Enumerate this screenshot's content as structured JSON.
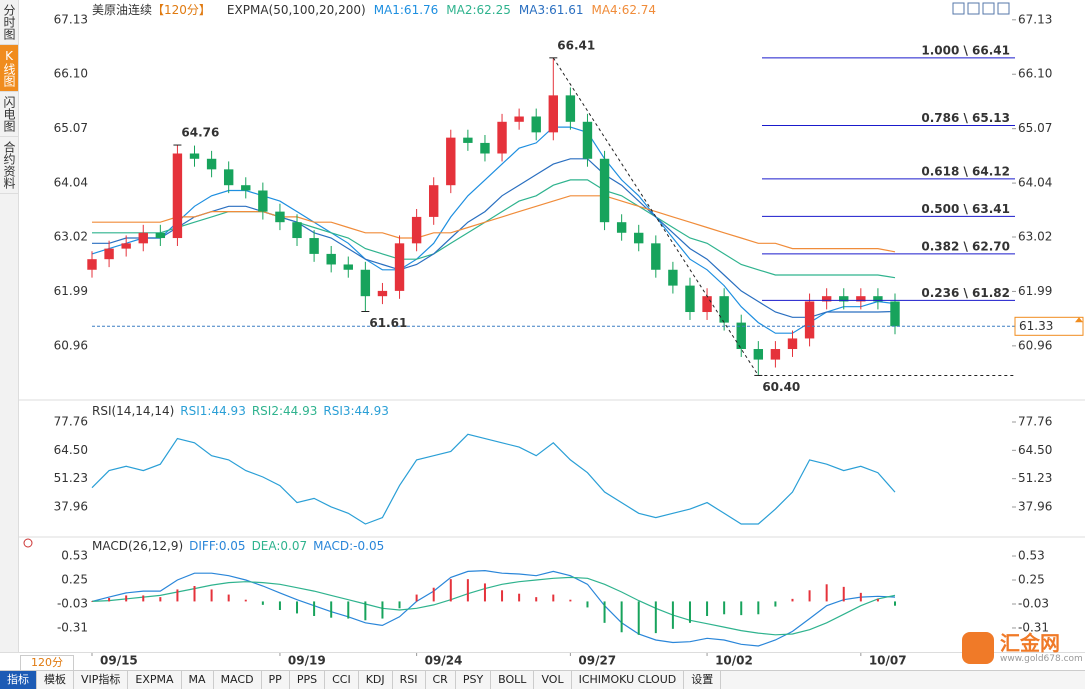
{
  "ui": {
    "tabs": [
      "分时图",
      "K线图",
      "闪电图",
      "合约资料"
    ],
    "active_tab": "K线图",
    "period_button": "120分",
    "toolbar": [
      "指标",
      "模板",
      "VIP指标",
      "EXPMA",
      "MA",
      "MACD",
      "PP",
      "PPS",
      "CCI",
      "KDJ",
      "RSI",
      "CR",
      "PSY",
      "BOLL",
      "VOL",
      "ICHIMOKU CLOUD",
      "设置"
    ],
    "active_tool": "指标",
    "logo": {
      "name": "汇金网",
      "url": "www.gold678.com"
    }
  },
  "chart_data": [
    {
      "type": "candlestick",
      "title": "美原油连续",
      "period": "【120分】",
      "indicator": "EXPMA(50,100,20,200)",
      "categories": [
        "09/15",
        null,
        null,
        null,
        null,
        null,
        null,
        null,
        null,
        null,
        null,
        "09/19",
        null,
        null,
        null,
        null,
        null,
        null,
        null,
        "09/24",
        null,
        null,
        null,
        null,
        null,
        null,
        null,
        null,
        "09/27",
        null,
        null,
        null,
        null,
        null,
        null,
        null,
        "10/02",
        null,
        null,
        null,
        null,
        null,
        null,
        null,
        null,
        "10/07",
        null,
        null
      ],
      "open": [
        62.4,
        62.6,
        62.8,
        62.9,
        63.1,
        63.0,
        64.6,
        64.5,
        64.3,
        64.0,
        63.9,
        63.5,
        63.3,
        63.0,
        62.7,
        62.5,
        62.4,
        61.9,
        62.0,
        62.9,
        63.4,
        64.0,
        64.9,
        64.8,
        64.6,
        65.2,
        65.3,
        65.0,
        65.7,
        65.2,
        64.5,
        63.3,
        63.1,
        62.9,
        62.4,
        62.1,
        61.6,
        61.9,
        61.4,
        60.9,
        60.7,
        60.9,
        61.1,
        61.8,
        61.9,
        61.8,
        61.9,
        61.8
      ],
      "high": [
        62.75,
        62.95,
        63.05,
        63.25,
        63.25,
        64.76,
        64.75,
        64.65,
        64.45,
        64.15,
        64.05,
        63.65,
        63.45,
        63.15,
        62.85,
        62.65,
        62.55,
        62.15,
        63.05,
        63.55,
        64.15,
        65.05,
        65.05,
        64.95,
        65.35,
        65.45,
        65.45,
        66.41,
        65.85,
        65.35,
        64.65,
        63.45,
        63.25,
        63.05,
        62.55,
        62.25,
        62.05,
        62.05,
        61.55,
        61.05,
        61.05,
        61.25,
        61.95,
        62.05,
        62.05,
        62.05,
        62.05,
        61.95
      ],
      "low": [
        62.25,
        62.45,
        62.65,
        62.75,
        62.85,
        62.85,
        64.35,
        64.15,
        63.85,
        63.75,
        63.35,
        63.15,
        62.85,
        62.55,
        62.35,
        62.25,
        61.61,
        61.75,
        61.85,
        62.75,
        63.25,
        63.85,
        64.65,
        64.45,
        64.45,
        65.05,
        64.85,
        64.85,
        65.05,
        64.35,
        63.15,
        62.95,
        62.75,
        62.25,
        61.95,
        61.45,
        61.45,
        61.25,
        60.75,
        60.4,
        60.55,
        60.75,
        60.95,
        61.65,
        61.65,
        61.65,
        61.65,
        61.18
      ],
      "close": [
        62.6,
        62.8,
        62.9,
        63.1,
        63.0,
        64.6,
        64.5,
        64.3,
        64.0,
        63.9,
        63.5,
        63.3,
        63.0,
        62.7,
        62.5,
        62.4,
        61.9,
        62.0,
        62.9,
        63.4,
        64.0,
        64.9,
        64.8,
        64.6,
        65.2,
        65.3,
        65.0,
        65.7,
        65.2,
        64.5,
        63.3,
        63.1,
        62.9,
        62.4,
        62.1,
        61.6,
        61.9,
        61.4,
        60.9,
        60.7,
        60.9,
        61.1,
        61.8,
        61.9,
        61.8,
        61.9,
        61.8,
        61.33
      ],
      "up_color": "#e5323b",
      "down_color": "#17a35c",
      "series": [
        {
          "name": "MA1:61.76",
          "color": "#1e8fe0",
          "values": [
            62.7,
            62.8,
            62.9,
            63.0,
            63.0,
            63.3,
            63.6,
            63.8,
            63.9,
            63.9,
            63.8,
            63.7,
            63.5,
            63.3,
            63.1,
            62.9,
            62.6,
            62.4,
            62.4,
            62.6,
            62.9,
            63.4,
            63.8,
            64.1,
            64.4,
            64.7,
            64.8,
            65.1,
            65.1,
            65.0,
            64.5,
            64.1,
            63.8,
            63.4,
            63.0,
            62.6,
            62.4,
            62.1,
            61.7,
            61.4,
            61.2,
            61.2,
            61.4,
            61.6,
            61.7,
            61.7,
            61.8,
            61.76
          ]
        },
        {
          "name": "MA2:62.25",
          "color": "#2fb38e",
          "values": [
            63.1,
            63.1,
            63.1,
            63.1,
            63.1,
            63.2,
            63.3,
            63.4,
            63.5,
            63.5,
            63.5,
            63.4,
            63.3,
            63.2,
            63.1,
            63.0,
            62.8,
            62.7,
            62.6,
            62.6,
            62.7,
            62.9,
            63.1,
            63.3,
            63.5,
            63.7,
            63.8,
            64.0,
            64.1,
            64.1,
            63.9,
            63.8,
            63.6,
            63.4,
            63.2,
            63.0,
            62.9,
            62.7,
            62.5,
            62.4,
            62.3,
            62.3,
            62.3,
            62.3,
            62.3,
            62.3,
            62.3,
            62.25
          ]
        },
        {
          "name": "MA3:61.61",
          "color": "#2a6fc0",
          "values": [
            62.9,
            62.9,
            63.0,
            63.0,
            63.0,
            63.2,
            63.4,
            63.5,
            63.6,
            63.6,
            63.5,
            63.4,
            63.3,
            63.1,
            63.0,
            62.8,
            62.6,
            62.5,
            62.4,
            62.5,
            62.7,
            63.0,
            63.3,
            63.5,
            63.8,
            64.0,
            64.2,
            64.4,
            64.5,
            64.5,
            64.2,
            64.0,
            63.7,
            63.4,
            63.1,
            62.8,
            62.6,
            62.3,
            62.0,
            61.8,
            61.6,
            61.5,
            61.5,
            61.6,
            61.6,
            61.6,
            61.6,
            61.61
          ]
        },
        {
          "name": "MA4:62.74",
          "color": "#f08c3a",
          "values": [
            63.3,
            63.3,
            63.3,
            63.3,
            63.3,
            63.4,
            63.4,
            63.5,
            63.5,
            63.5,
            63.5,
            63.4,
            63.4,
            63.3,
            63.3,
            63.2,
            63.1,
            63.1,
            63.0,
            63.0,
            63.1,
            63.1,
            63.2,
            63.3,
            63.4,
            63.5,
            63.6,
            63.7,
            63.8,
            63.8,
            63.8,
            63.7,
            63.6,
            63.5,
            63.4,
            63.3,
            63.2,
            63.1,
            63.0,
            62.9,
            62.9,
            62.8,
            62.8,
            62.8,
            62.8,
            62.8,
            62.8,
            62.74
          ]
        }
      ],
      "annotations": [
        {
          "label": "64.76",
          "value": 64.76
        },
        {
          "label": "66.41",
          "value": 66.41
        },
        {
          "label": "61.61",
          "value": 61.61
        },
        {
          "label": "60.40",
          "value": 60.4
        }
      ],
      "fibonacci": [
        {
          "label": "1.000 \\ 66.41",
          "value": 66.41
        },
        {
          "label": "0.786 \\ 65.13",
          "value": 65.13
        },
        {
          "label": "0.618 \\ 64.12",
          "value": 64.12
        },
        {
          "label": "0.500 \\ 63.41",
          "value": 63.41
        },
        {
          "label": "0.382 \\ 62.70",
          "value": 62.7
        },
        {
          "label": "0.236 \\ 61.82",
          "value": 61.82
        }
      ],
      "last_price": 61.33,
      "ylim": [
        60.03,
        67.41
      ],
      "yticks": [
        67.13,
        {
          "value": 66.1,
          "label": "66.10"
        },
        65.07,
        64.04,
        63.02,
        61.99,
        60.96
      ]
    },
    {
      "type": "line",
      "title": "RSI(14,14,14)",
      "legend": [
        "RSI1:44.93",
        "RSI2:44.93",
        "RSI3:44.93"
      ],
      "series": [
        {
          "name": "RSI1",
          "color": "#2a9fd6",
          "values": [
            47,
            55,
            57,
            55,
            58,
            70,
            68,
            62,
            60,
            55,
            52,
            48,
            40,
            42,
            38,
            35,
            30,
            33,
            48,
            60,
            62,
            64,
            72,
            70,
            68,
            66,
            62,
            68,
            60,
            54,
            45,
            40,
            35,
            33,
            35,
            37,
            40,
            35,
            30,
            30,
            37,
            45,
            60,
            58,
            55,
            57,
            54,
            44.93
          ]
        }
      ],
      "ylim": [
        24.85,
        85.72
      ],
      "yticks": [
        77.76,
        {
          "value": 64.5,
          "label": "64.50"
        },
        51.23,
        37.96
      ]
    },
    {
      "type": "macd",
      "title": "MACD(26,12,9)",
      "legend": [
        "DIFF:0.05",
        "DEA:0.07",
        "MACD:-0.05"
      ],
      "series": [
        {
          "name": "DIFF",
          "color": "#2a86d9",
          "values": [
            0.0,
            0.05,
            0.1,
            0.12,
            0.12,
            0.25,
            0.33,
            0.33,
            0.3,
            0.25,
            0.18,
            0.1,
            0.02,
            -0.05,
            -0.12,
            -0.18,
            -0.25,
            -0.28,
            -0.18,
            0.0,
            0.12,
            0.28,
            0.35,
            0.36,
            0.33,
            0.32,
            0.3,
            0.35,
            0.3,
            0.2,
            -0.05,
            -0.25,
            -0.38,
            -0.45,
            -0.48,
            -0.47,
            -0.43,
            -0.45,
            -0.5,
            -0.52,
            -0.45,
            -0.35,
            -0.2,
            -0.05,
            0.02,
            0.05,
            0.06,
            0.05
          ]
        },
        {
          "name": "DEA",
          "color": "#2fb38e",
          "values": [
            0.0,
            0.01,
            0.03,
            0.05,
            0.07,
            0.11,
            0.15,
            0.19,
            0.22,
            0.23,
            0.22,
            0.2,
            0.16,
            0.12,
            0.07,
            0.02,
            -0.03,
            -0.08,
            -0.1,
            -0.08,
            -0.04,
            0.02,
            0.09,
            0.15,
            0.2,
            0.23,
            0.25,
            0.27,
            0.28,
            0.27,
            0.2,
            0.11,
            0.01,
            -0.08,
            -0.16,
            -0.22,
            -0.26,
            -0.3,
            -0.34,
            -0.37,
            -0.39,
            -0.38,
            -0.33,
            -0.25,
            -0.15,
            -0.05,
            0.03,
            0.07
          ]
        },
        {
          "name": "MACD",
          "up_color": "#e5323b",
          "down_color": "#17a35c",
          "values": [
            0,
            0.04,
            0.07,
            0.07,
            0.05,
            0.14,
            0.18,
            0.14,
            0.08,
            0.02,
            -0.04,
            -0.1,
            -0.14,
            -0.17,
            -0.19,
            -0.2,
            -0.22,
            -0.2,
            -0.08,
            0.08,
            0.16,
            0.26,
            0.26,
            0.21,
            0.13,
            0.09,
            0.05,
            0.08,
            0.02,
            -0.07,
            -0.25,
            -0.36,
            -0.39,
            -0.37,
            -0.32,
            -0.25,
            -0.17,
            -0.15,
            -0.16,
            -0.15,
            -0.06,
            0.03,
            0.13,
            0.2,
            0.17,
            0.1,
            0.03,
            -0.05
          ]
        }
      ],
      "ylim": [
        -0.567,
        0.717
      ],
      "yticks": [
        0.53,
        0.25,
        -0.03,
        -0.31
      ]
    }
  ]
}
